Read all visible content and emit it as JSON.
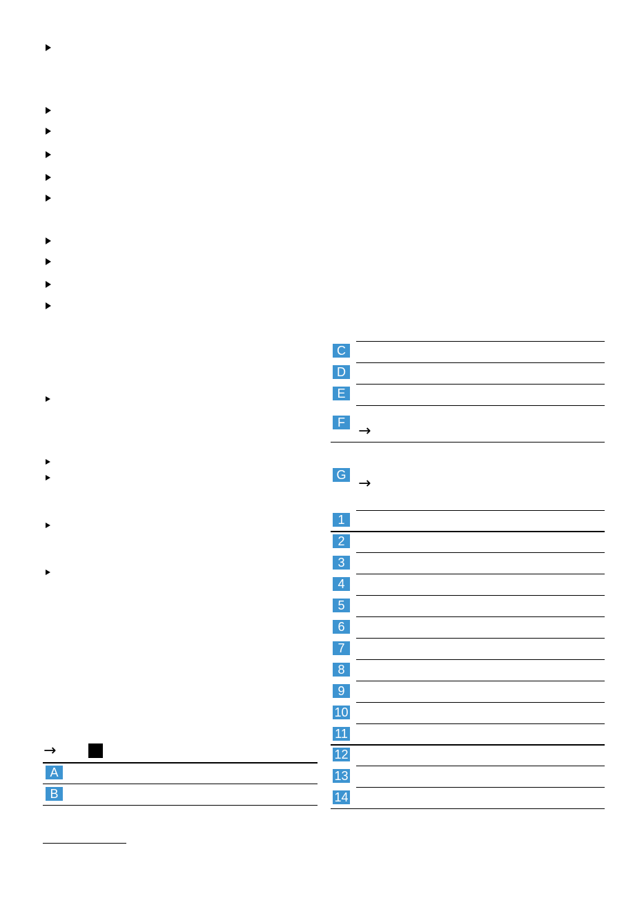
{
  "document": {
    "arrow_glyph": "→",
    "left_table": {
      "labels": [
        "A",
        "B"
      ]
    },
    "right_table": {
      "letter_labels": [
        "C",
        "D",
        "E",
        "F",
        "G"
      ],
      "number_labels": [
        "1",
        "2",
        "3",
        "4",
        "5",
        "6",
        "7",
        "8",
        "9",
        "10",
        "11",
        "12",
        "13",
        "14"
      ]
    },
    "colors": {
      "badge": "#3d94d1",
      "rule": "#000000"
    }
  }
}
